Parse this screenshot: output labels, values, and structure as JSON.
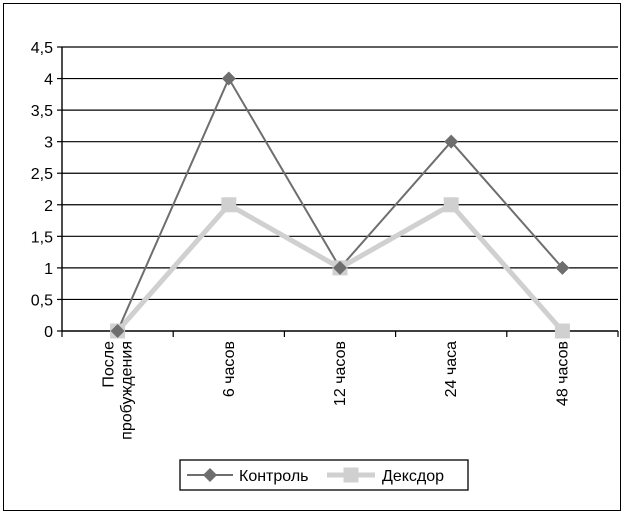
{
  "chart_data": {
    "type": "line",
    "categories": [
      "После\nпробуждения",
      "6 часов",
      "12 часов",
      "24 часа",
      "48 часов"
    ],
    "series": [
      {
        "name": "Контроль",
        "values": [
          0,
          4,
          1,
          3,
          1
        ],
        "color": "#6e6e6e",
        "marker": "diamond"
      },
      {
        "name": "Дексдор",
        "values": [
          0,
          2,
          1,
          2,
          0
        ],
        "color": "#d0d0d0",
        "marker": "square"
      }
    ],
    "yticks": [
      "0",
      "0,5",
      "1",
      "1,5",
      "2",
      "2,5",
      "3",
      "3,5",
      "4",
      "4,5"
    ],
    "ylim": [
      0,
      4.5
    ],
    "grid": true,
    "legend_position": "bottom",
    "title": "",
    "xlabel": "",
    "ylabel": ""
  }
}
